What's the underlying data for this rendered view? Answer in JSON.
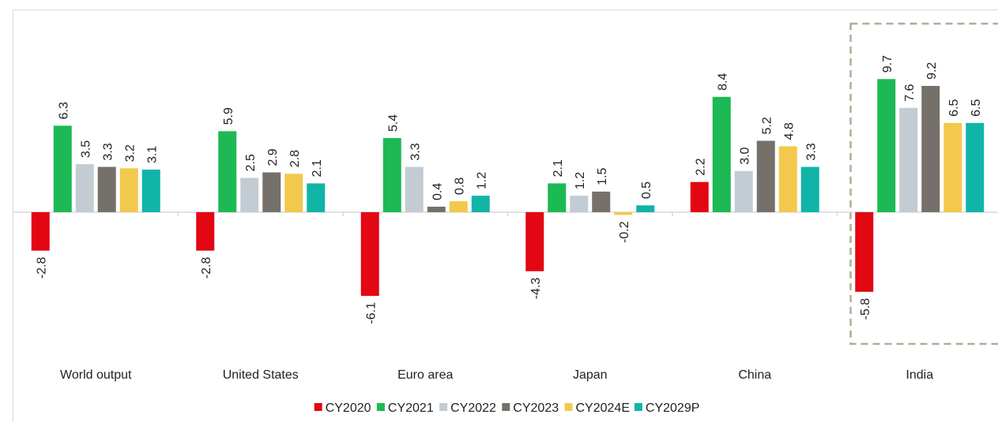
{
  "chart_data": {
    "type": "bar",
    "categories": [
      "World output",
      "United States",
      "Euro area",
      "Japan",
      "China",
      "India"
    ],
    "series": [
      {
        "name": "CY2020",
        "color": "#e30613",
        "values": [
          -2.8,
          -2.8,
          -6.1,
          -4.3,
          2.2,
          -5.8
        ]
      },
      {
        "name": "CY2021",
        "color": "#1db954",
        "values": [
          6.3,
          5.9,
          5.4,
          2.1,
          8.4,
          9.7
        ]
      },
      {
        "name": "CY2022",
        "color": "#c3ccd3",
        "values": [
          3.5,
          2.5,
          3.3,
          1.2,
          3.0,
          7.6
        ]
      },
      {
        "name": "CY2023",
        "color": "#76706b",
        "values": [
          3.3,
          2.9,
          0.4,
          1.5,
          5.2,
          9.2
        ]
      },
      {
        "name": "CY2024E",
        "color": "#f2c94c",
        "values": [
          3.2,
          2.8,
          0.8,
          -0.2,
          4.8,
          6.5
        ]
      },
      {
        "name": "CY2029P",
        "color": "#10b5a8",
        "values": [
          3.1,
          2.1,
          1.2,
          0.5,
          3.3,
          6.5
        ]
      }
    ],
    "value_labels": [
      [
        "-2.8",
        "6.3",
        "3.5",
        "3.3",
        "3.2",
        "3.1"
      ],
      [
        "-2.8",
        "5.9",
        "2.5",
        "2.9",
        "2.8",
        "2.1"
      ],
      [
        "-6.1",
        "5.4",
        "3.3",
        "0.4",
        "0.8",
        "1.2"
      ],
      [
        "-4.3",
        "2.1",
        "1.2",
        "1.5",
        "-0.2",
        "0.5"
      ],
      [
        "2.2",
        "8.4",
        "3.0",
        "5.2",
        "4.8",
        "3.3"
      ],
      [
        "-5.8",
        "9.7",
        "7.6",
        "9.2",
        "6.5",
        "6.5"
      ]
    ],
    "title": "",
    "xlabel": "",
    "ylabel": "",
    "highlight_category": "India",
    "legend_position": "bottom",
    "grid": false
  }
}
